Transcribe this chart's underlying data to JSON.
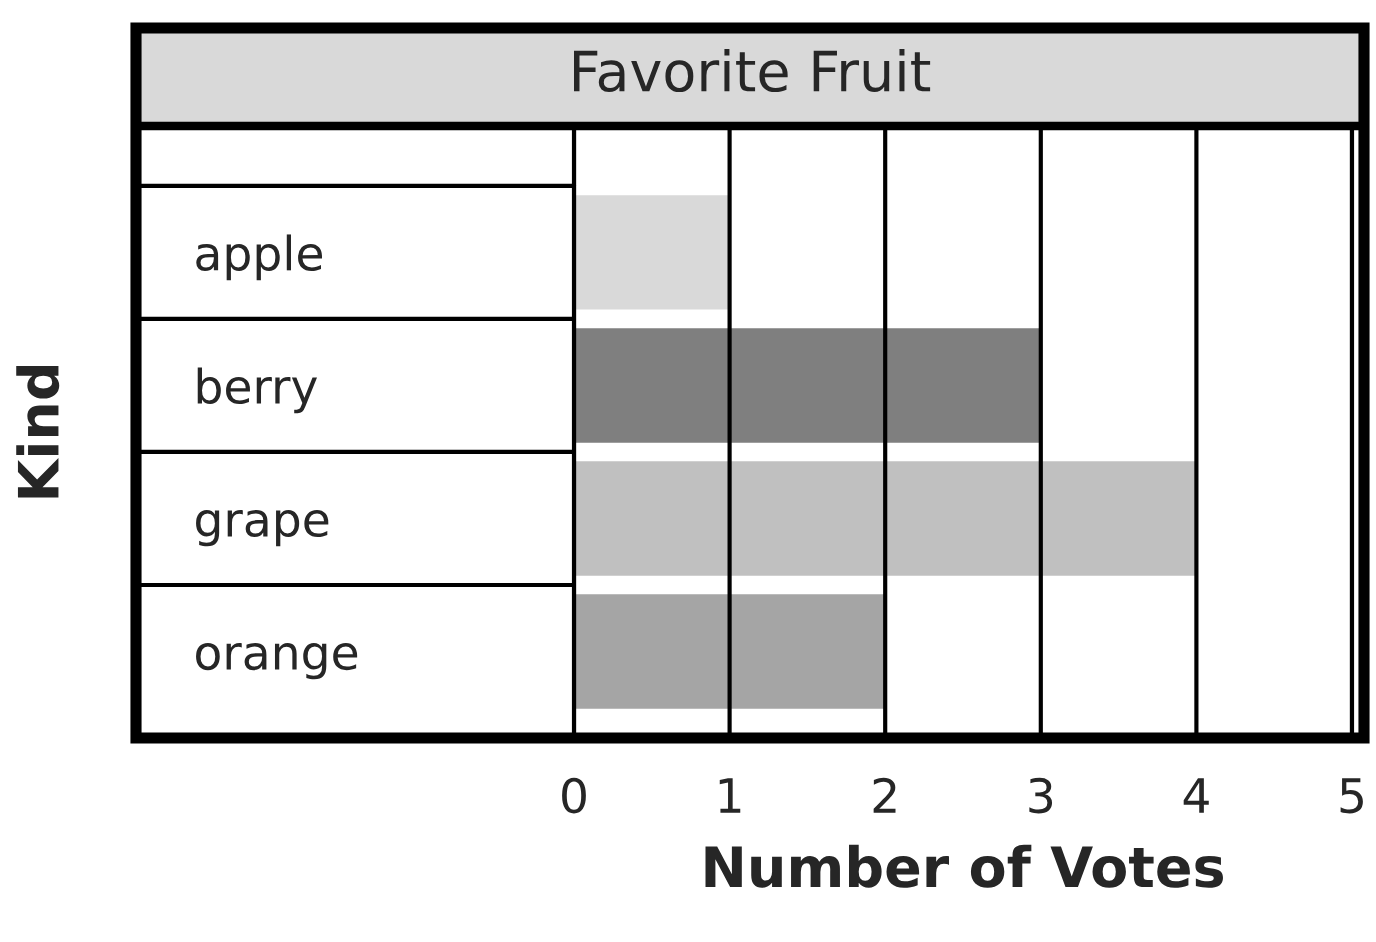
{
  "chart_data": {
    "type": "bar",
    "orientation": "horizontal",
    "title": "Favorite Fruit",
    "xlabel": "Number of Votes",
    "ylabel": "Kind",
    "categories": [
      "apple",
      "berry",
      "grape",
      "orange"
    ],
    "values": [
      1,
      3,
      4,
      2
    ],
    "colors": [
      "#d9d9d9",
      "#7f7f7f",
      "#c0c0c0",
      "#a5a5a5"
    ],
    "xlim": [
      0,
      5
    ],
    "xticks": [
      0,
      1,
      2,
      3,
      4,
      5
    ],
    "grid": "x"
  }
}
